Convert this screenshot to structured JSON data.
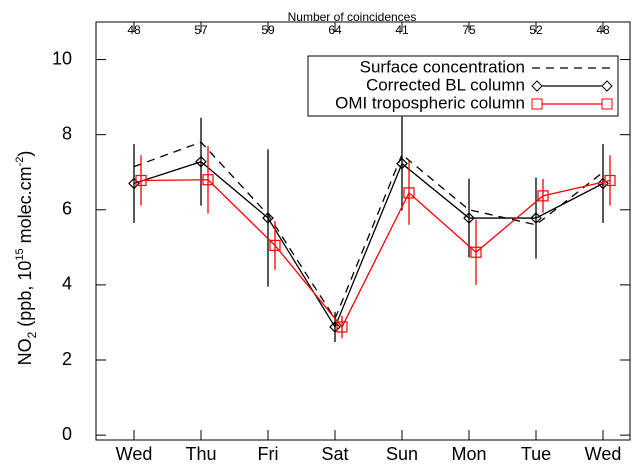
{
  "chart_data": {
    "type": "line",
    "top_axis_title": "Number of coincidences",
    "top_labels": [
      48,
      57,
      59,
      64,
      41,
      75,
      52,
      48
    ],
    "ylabel": [
      "NO",
      "2",
      " (ppb, 10",
      "15",
      " molec.cm",
      "-2",
      ")"
    ],
    "categories": [
      "Wed",
      "Thu",
      "Fri",
      "Sat",
      "Sun",
      "Mon",
      "Tue",
      "Wed"
    ],
    "ylim": [
      -0.13,
      11
    ],
    "yticks": [
      0,
      2,
      4,
      6,
      8,
      10
    ],
    "legend": "upper right",
    "series": [
      {
        "name": "Surface concentration",
        "color": "#000000",
        "dash": true,
        "marker": "none",
        "values": [
          7.15,
          7.8,
          5.87,
          3.1,
          7.47,
          6.0,
          5.6,
          7.0
        ]
      },
      {
        "name": "Corrected BL column",
        "color": "#000000",
        "dash": false,
        "marker": "diamond",
        "values": [
          6.7,
          7.28,
          5.78,
          2.88,
          7.23,
          5.78,
          5.78,
          6.7
        ],
        "errors": [
          1.05,
          1.17,
          1.83,
          0.4,
          1.25,
          1.05,
          1.08,
          1.05
        ]
      },
      {
        "name": "OMI tropospheric column",
        "color": "#ff0000",
        "dash": false,
        "marker": "square",
        "values": [
          6.78,
          6.8,
          5.05,
          2.88,
          6.45,
          4.87,
          6.37,
          6.78
        ],
        "errors": [
          0.67,
          0.9,
          0.65,
          0.3,
          0.85,
          0.87,
          0.45,
          0.67
        ]
      }
    ]
  }
}
